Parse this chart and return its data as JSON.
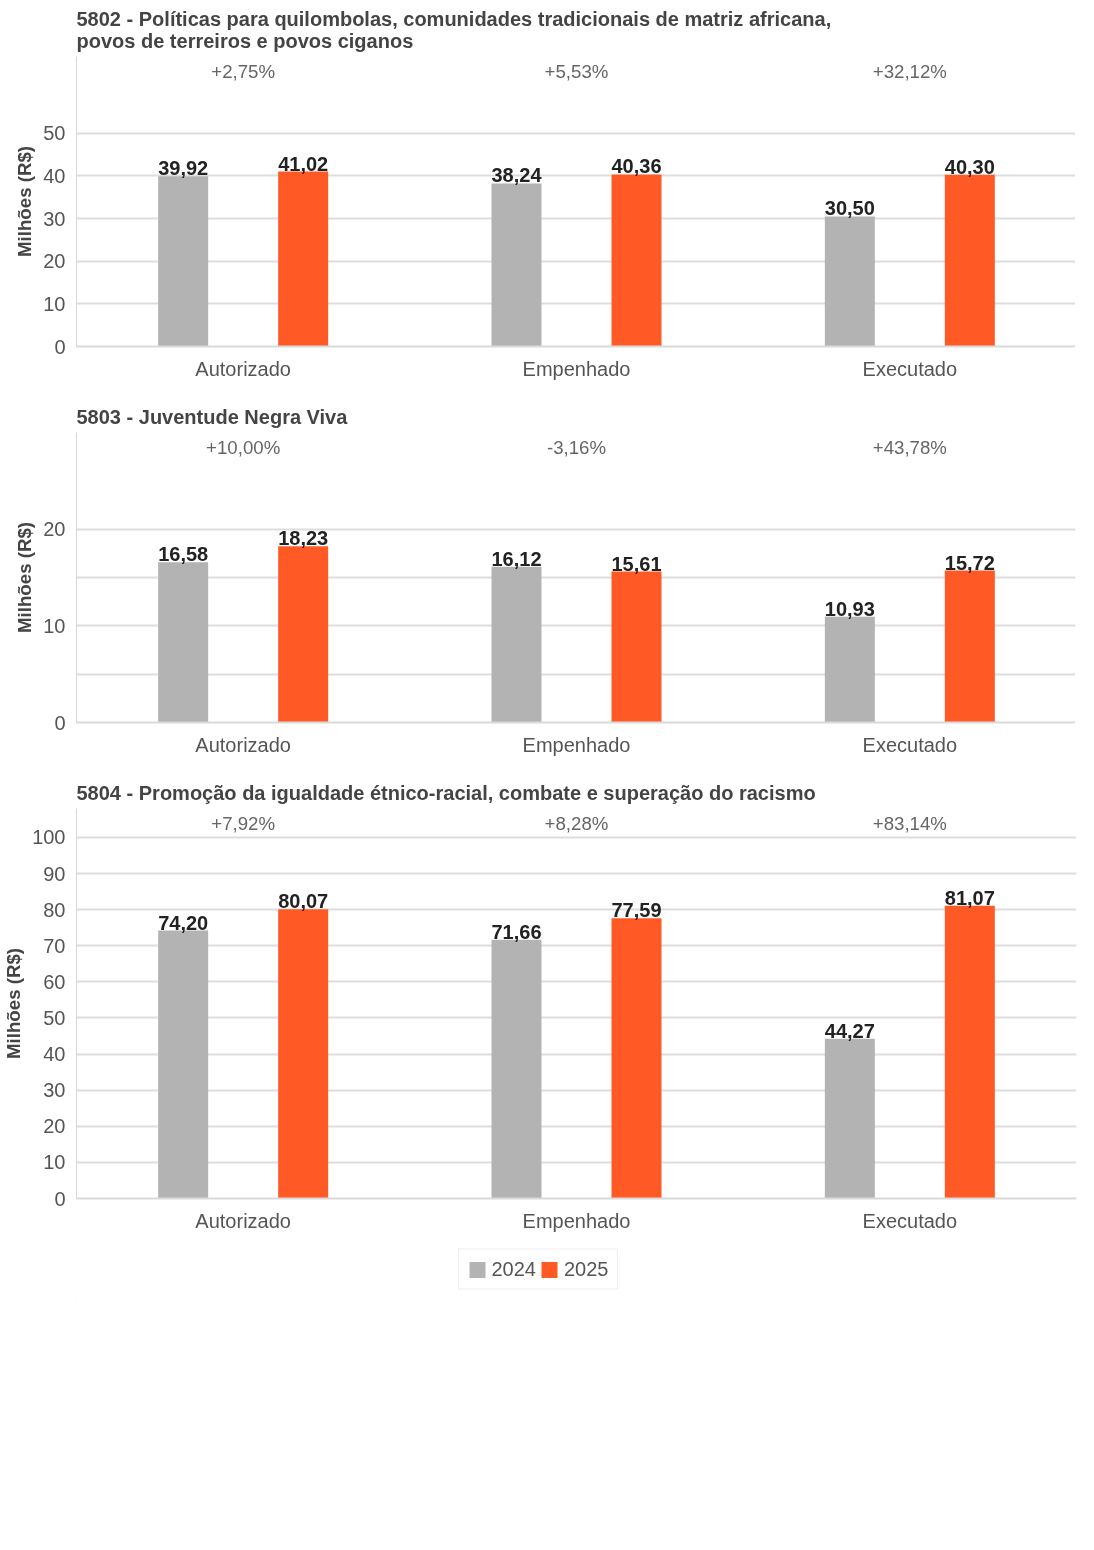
{
  "chart_data": [
    {
      "type": "bar",
      "title": "5802 - Políticas para quilombolas, comunidades tradicionais de matriz africana,\npovos de terreiros e povos ciganos",
      "ylabel": "Milhões (R$)",
      "categories": [
        "Autorizado",
        "Empenhado",
        "Executado"
      ],
      "series": [
        {
          "color": "#b3b3b3",
          "values": [
            39.92,
            38.24,
            30.5
          ],
          "value_labels": [
            "39,92",
            "38,24",
            "30,50"
          ]
        },
        {
          "color": "#ff5a26",
          "values": [
            41.02,
            40.36,
            40.3
          ],
          "value_labels": [
            "41,02",
            "40,36",
            "40,30"
          ]
        }
      ],
      "ylim": [
        0,
        68
      ],
      "yticks": [
        0,
        10,
        20,
        30,
        40,
        50
      ],
      "grid": "y",
      "annotations": [
        "+2,75%",
        "+5,53%",
        "+32,12%"
      ]
    },
    {
      "type": "bar",
      "title": "5803 - Juventude Negra Viva",
      "ylabel": "Milhões (R$)",
      "categories": [
        "Autorizado",
        "Empenhado",
        "Executado"
      ],
      "series": [
        {
          "color": "#b3b3b3",
          "values": [
            16.58,
            16.12,
            10.93
          ],
          "value_labels": [
            "16,58",
            "16,12",
            "10,93"
          ]
        },
        {
          "color": "#ff5a26",
          "values": [
            18.23,
            15.61,
            15.72
          ],
          "value_labels": [
            "18,23",
            "15,61",
            "15,72"
          ]
        }
      ],
      "ylim": [
        0,
        30
      ],
      "yticks": [
        0,
        {
          "value": 5,
          "label": null
        },
        10,
        {
          "value": 15,
          "label": null
        },
        20
      ],
      "grid": "y",
      "annotations": [
        "+10,00%",
        "-3,16%",
        "+43,78%"
      ]
    },
    {
      "type": "bar",
      "title": "5804 - Promoção da igualdade étnico-racial, combate e superação do racismo",
      "ylabel": "Milhões (R$)",
      "categories": [
        "Autorizado",
        "Empenhado",
        "Executado"
      ],
      "series": [
        {
          "name": "2024",
          "color": "#b3b3b3",
          "values": [
            74.2,
            71.66,
            44.27
          ],
          "value_labels": [
            "74,20",
            "71,66",
            "44,27"
          ]
        },
        {
          "name": "2025",
          "color": "#ff5a26",
          "values": [
            80.07,
            77.59,
            81.07
          ],
          "value_labels": [
            "80,07",
            "77,59",
            "81,07"
          ]
        }
      ],
      "ylim": [
        0,
        108
      ],
      "yticks": [
        0,
        10,
        20,
        30,
        40,
        50,
        60,
        70,
        80,
        90,
        100
      ],
      "grid": "y",
      "legend": "bottom",
      "annotations": [
        "+7,92%",
        "+8,28%",
        "+83,14%"
      ]
    }
  ]
}
